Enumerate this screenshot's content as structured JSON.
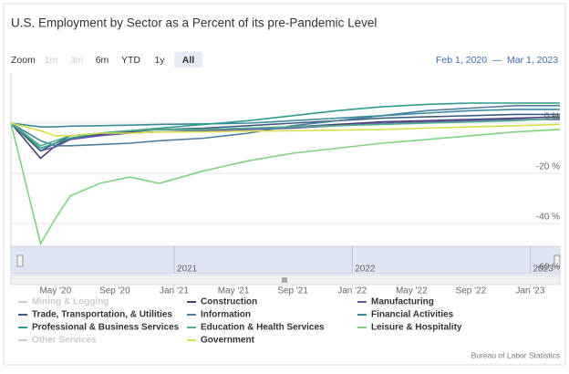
{
  "chart_data": {
    "type": "line",
    "title": "U.S. Employment by Sector as a Percent of its pre-Pandemic Level",
    "zoom_label": "Zoom",
    "zoom_buttons": [
      "1m",
      "3m",
      "6m",
      "YTD",
      "1y",
      "All"
    ],
    "zoom_disabled": [
      "1m",
      "3m"
    ],
    "zoom_selected": "All",
    "range_start": "Feb 1, 2020",
    "range_separator": "—",
    "range_end": "Mar 1, 2023",
    "credits": "Bureau of Labor Statistics",
    "x": [
      "2020-02",
      "2020-04",
      "2020-05",
      "2020-06",
      "2020-08",
      "2020-10",
      "2020-12",
      "2021-03",
      "2021-06",
      "2021-09",
      "2021-12",
      "2022-03",
      "2022-06",
      "2022-09",
      "2022-12",
      "2023-03"
    ],
    "xlim": [
      "2020-02",
      "2023-03"
    ],
    "xticks": [
      {
        "value": "2020-05",
        "label": "May '20"
      },
      {
        "value": "2020-09",
        "label": "Sep '20"
      },
      {
        "value": "2021-01",
        "label": "Jan '21"
      },
      {
        "value": "2021-05",
        "label": "May '21"
      },
      {
        "value": "2021-09",
        "label": "Sep '21"
      },
      {
        "value": "2022-01",
        "label": "Jan '22"
      },
      {
        "value": "2022-05",
        "label": "May '22"
      },
      {
        "value": "2022-09",
        "label": "Sep '22"
      },
      {
        "value": "2023-01",
        "label": "Jan '23"
      }
    ],
    "navigator_ticks": [
      {
        "value": "2021-01",
        "label": "2021"
      },
      {
        "value": "2022-01",
        "label": "2022"
      },
      {
        "value": "2023-01",
        "label": "2023"
      }
    ],
    "ylim": [
      -60,
      20
    ],
    "yticks": [
      {
        "value": -60,
        "label": "-60 %"
      },
      {
        "value": -40,
        "label": "-40 %"
      },
      {
        "value": -20,
        "label": "-20 %"
      },
      {
        "value": 0,
        "label": "0 %"
      }
    ],
    "grid": true,
    "series": [
      {
        "name": "Mining & Logging",
        "visible": false
      },
      {
        "name": "Construction",
        "color": "#4a3f72",
        "values": [
          0,
          -14,
          -9,
          -6,
          -4.5,
          -3.5,
          -2.5,
          -2.5,
          -2,
          -1.5,
          -0.5,
          0.5,
          1,
          1.5,
          2,
          2.5
        ]
      },
      {
        "name": "Manufacturing",
        "color": "#6a5aa8",
        "values": [
          0,
          -11,
          -9.5,
          -6.5,
          -5,
          -4,
          -3.5,
          -3,
          -2.5,
          -2,
          -1,
          0,
          0.5,
          1,
          1.5,
          1.5
        ]
      },
      {
        "name": "Trade, Transportation, & Utilities",
        "color": "#3d5b80",
        "values": [
          0,
          -11,
          -8,
          -5,
          -4,
          -3,
          -2.5,
          -2,
          -1,
          0,
          1,
          2,
          2.5,
          3,
          3.5,
          3.5
        ]
      },
      {
        "name": "Information",
        "color": "#4a7fa0",
        "values": [
          0,
          -7,
          -9,
          -9,
          -8.5,
          -8,
          -7,
          -6,
          -4,
          -1,
          1,
          3,
          5,
          6,
          7,
          7
        ]
      },
      {
        "name": "Financial Activities",
        "color": "#3a8c9c",
        "values": [
          0,
          -1.5,
          -1.5,
          -1.2,
          -1,
          -0.8,
          -0.5,
          -0.3,
          0,
          1,
          2,
          3,
          4,
          5,
          5.5,
          5.5
        ]
      },
      {
        "name": "Professional & Business Services",
        "color": "#2e9d8c",
        "values": [
          0,
          -10,
          -8,
          -6,
          -4,
          -3,
          -2,
          -0.5,
          1,
          3,
          5,
          6.5,
          7.5,
          8,
          8,
          8
        ]
      },
      {
        "name": "Education & Health Services",
        "color": "#4cb08a",
        "values": [
          0,
          -9,
          -7,
          -5,
          -4,
          -3,
          -2.5,
          -2.5,
          -2,
          -1.5,
          -1,
          -0.5,
          0,
          0.5,
          1,
          2
        ]
      },
      {
        "name": "Leisure & Hospitality",
        "color": "#7ed37e",
        "values": [
          0,
          -48,
          -38,
          -29,
          -24,
          -21.5,
          -24,
          -19,
          -15,
          -12,
          -10,
          -8,
          -6.5,
          -5,
          -3.5,
          -2.5
        ]
      },
      {
        "name": "Other Services",
        "visible": false
      },
      {
        "name": "Government",
        "color": "#d6e04c",
        "values": [
          0,
          -3,
          -5,
          -5,
          -4,
          -4,
          -3.5,
          -3.5,
          -3.2,
          -3,
          -2.8,
          -2.5,
          -2,
          -1.5,
          -1,
          -0.5
        ]
      }
    ]
  }
}
